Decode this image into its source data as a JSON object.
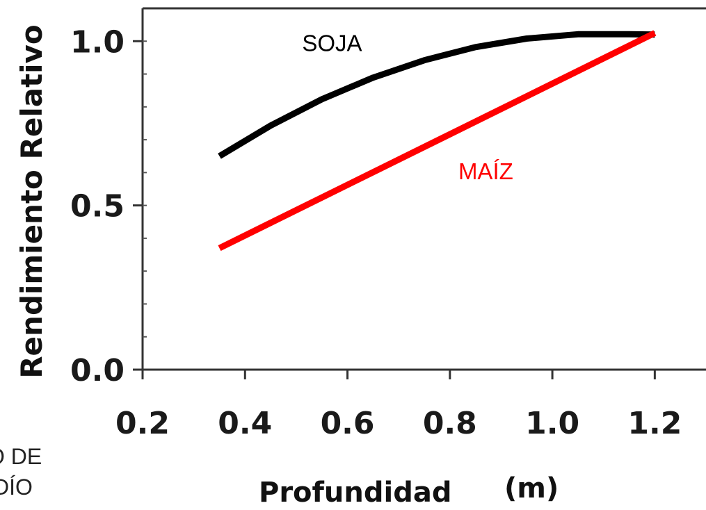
{
  "chart_data": {
    "type": "line",
    "title": "",
    "xlabel": "Profundidad",
    "xlabel_unit": "(m)",
    "ylabel": "Rendimiento Relativo",
    "xlim": [
      0.2,
      1.3
    ],
    "ylim": [
      0.0,
      1.1
    ],
    "x_ticks": [
      "0.2",
      "0.4",
      "0.6",
      "0.8",
      "1.0",
      "1.2"
    ],
    "y_ticks": [
      "0.0",
      "0.5",
      "1.0"
    ],
    "grid": false,
    "series": [
      {
        "name": "SOJA",
        "color": "#000000",
        "x": [
          0.35,
          0.45,
          0.55,
          0.65,
          0.75,
          0.85,
          0.95,
          1.05,
          1.15,
          1.2
        ],
        "y": [
          0.65,
          0.743,
          0.823,
          0.889,
          0.942,
          0.982,
          1.008,
          1.021,
          1.021,
          1.02
        ]
      },
      {
        "name": "MAÍZ",
        "color": "#ff0000",
        "x": [
          0.35,
          1.2
        ],
        "y": [
          0.37,
          1.025
        ]
      }
    ],
    "annotations": [
      {
        "text": "SOJA",
        "x": 0.57,
        "y": 0.97,
        "color": "#000000"
      },
      {
        "text": "MAÍZ",
        "x": 0.87,
        "y": 0.58,
        "color": "#ff0000"
      }
    ]
  },
  "crop_text": {
    "line1": "O DE",
    "line2": "DÍO"
  }
}
